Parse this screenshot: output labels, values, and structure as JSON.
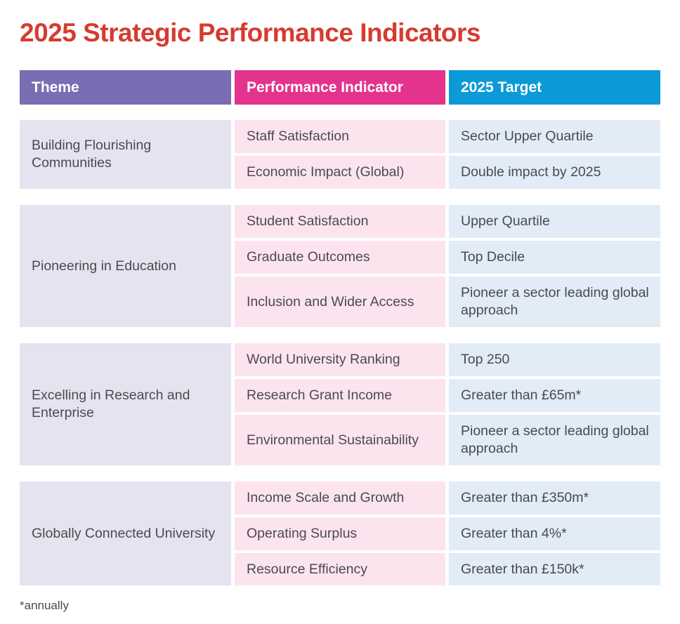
{
  "title": "2025 Strategic Performance Indicators",
  "headers": {
    "theme": "Theme",
    "indicator": "Performance Indicator",
    "target": "2025 Target"
  },
  "groups": [
    {
      "theme": "Building Flourishing Communities",
      "rows": [
        {
          "indicator": "Staff Satisfaction",
          "target": "Sector Upper Quartile"
        },
        {
          "indicator": "Economic Impact (Global)",
          "target": "Double impact by 2025"
        }
      ]
    },
    {
      "theme": "Pioneering in Education",
      "rows": [
        {
          "indicator": "Student Satisfaction",
          "target": "Upper Quartile"
        },
        {
          "indicator": "Graduate Outcomes",
          "target": "Top Decile"
        },
        {
          "indicator": "Inclusion and Wider Access",
          "target": "Pioneer a sector leading global approach"
        }
      ]
    },
    {
      "theme": "Excelling in Research and Enterprise",
      "rows": [
        {
          "indicator": "World University Ranking",
          "target": "Top 250"
        },
        {
          "indicator": "Research Grant Income",
          "target": "Greater than £65m*"
        },
        {
          "indicator": "Environmental Sustainability",
          "target": "Pioneer a sector leading global approach"
        }
      ]
    },
    {
      "theme": "Globally Connected University",
      "rows": [
        {
          "indicator": "Income Scale and Growth",
          "target": "Greater than £350m*"
        },
        {
          "indicator": "Operating Surplus",
          "target": "Greater than 4%*"
        },
        {
          "indicator": "Resource Efficiency",
          "target": "Greater than £150k*"
        }
      ]
    }
  ],
  "footnote": "*annually",
  "colors": {
    "title": "#d63b2f",
    "theme_header": "#7b6db3",
    "indicator_header": "#e4338d",
    "target_header": "#0b9ad7",
    "theme_cell": "#e6e3f0",
    "indicator_cell": "#fce4ef",
    "target_cell": "#e1ecf7"
  }
}
